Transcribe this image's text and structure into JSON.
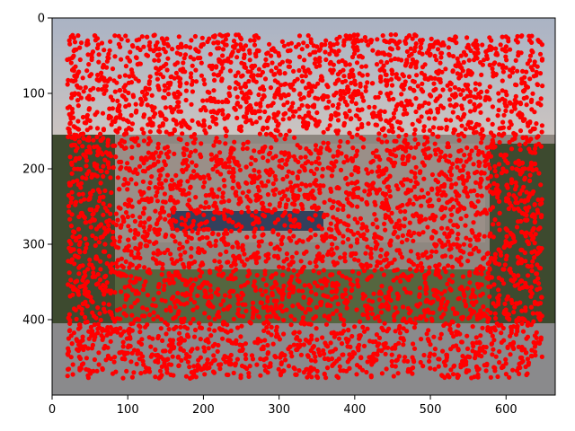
{
  "chart_data": {
    "type": "scatter",
    "title": "",
    "xlabel": "",
    "ylabel": "",
    "xlim": [
      0,
      665
    ],
    "ylim": [
      500,
      0
    ],
    "y_inverted": true,
    "grid": false,
    "x_ticks": [
      0,
      100,
      200,
      300,
      400,
      500,
      600
    ],
    "y_ticks": [
      0,
      100,
      200,
      300,
      400
    ],
    "x_tick_labels": [
      "0",
      "100",
      "200",
      "300",
      "400",
      "500",
      "600"
    ],
    "y_tick_labels": [
      "0",
      "100",
      "200",
      "300",
      "400"
    ],
    "background": "photograph of a building with a lawn and trees under a dusk sky",
    "series": [
      {
        "marker_color": "#ff0000",
        "marker": "filled-circle",
        "point_region": {
          "x_range": [
            20,
            648
          ],
          "y_range": [
            22,
            478
          ]
        },
        "point_density": "dense",
        "x": [
          25,
          60,
          100,
          150,
          200,
          250,
          300,
          350,
          400,
          450,
          500,
          550,
          600,
          645,
          30,
          80,
          140,
          210,
          280,
          340,
          410,
          470,
          530,
          590,
          640,
          40,
          90,
          130,
          190,
          260,
          330,
          390,
          460,
          520,
          580,
          630,
          35,
          70,
          120,
          170,
          230,
          300,
          370,
          430,
          490,
          560,
          620,
          28,
          75,
          115,
          160,
          220,
          290,
          360,
          420,
          480,
          545,
          610,
          645
        ],
        "y": [
          25,
          40,
          30,
          45,
          35,
          28,
          50,
          38,
          42,
          30,
          48,
          36,
          44,
          32,
          100,
          120,
          90,
          110,
          95,
          130,
          105,
          115,
          125,
          100,
          140,
          170,
          200,
          185,
          210,
          230,
          220,
          240,
          250,
          235,
          210,
          200,
          280,
          300,
          290,
          320,
          310,
          330,
          300,
          290,
          315,
          305,
          320,
          360,
          380,
          400,
          370,
          390,
          410,
          395,
          385,
          405,
          375,
          390,
          400
        ]
      }
    ]
  }
}
